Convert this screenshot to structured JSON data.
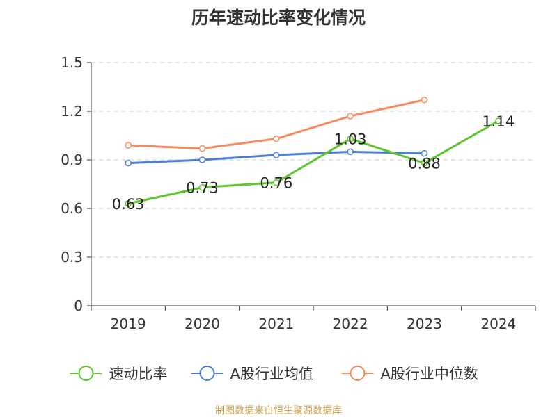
{
  "chart_data": {
    "type": "line",
    "title": "历年速动比率变化情况",
    "categories": [
      "2019",
      "2020",
      "2021",
      "2022",
      "2023",
      "2024"
    ],
    "ylim": [
      0,
      1.5
    ],
    "yticks": [
      "0",
      "0.3",
      "0.6",
      "0.9",
      "1.2",
      "1.5"
    ],
    "grid": true,
    "legend_position": "bottom",
    "series": [
      {
        "name": "速动比率",
        "color": "#5cc62c",
        "values": [
          0.63,
          0.73,
          0.76,
          1.03,
          0.88,
          1.14
        ],
        "labels": [
          "0.63",
          "0.73",
          "0.76",
          "1.03",
          "0.88",
          "1.14"
        ]
      },
      {
        "name": "A股行业均值",
        "color": "#4e7fd8",
        "values": [
          0.88,
          0.9,
          0.93,
          0.95,
          0.94,
          null
        ]
      },
      {
        "name": "A股行业中位数",
        "color": "#f58b5c",
        "values": [
          0.99,
          0.97,
          1.03,
          1.17,
          1.27,
          null
        ]
      }
    ]
  },
  "source": "制图数据来自恒生聚源数据库"
}
